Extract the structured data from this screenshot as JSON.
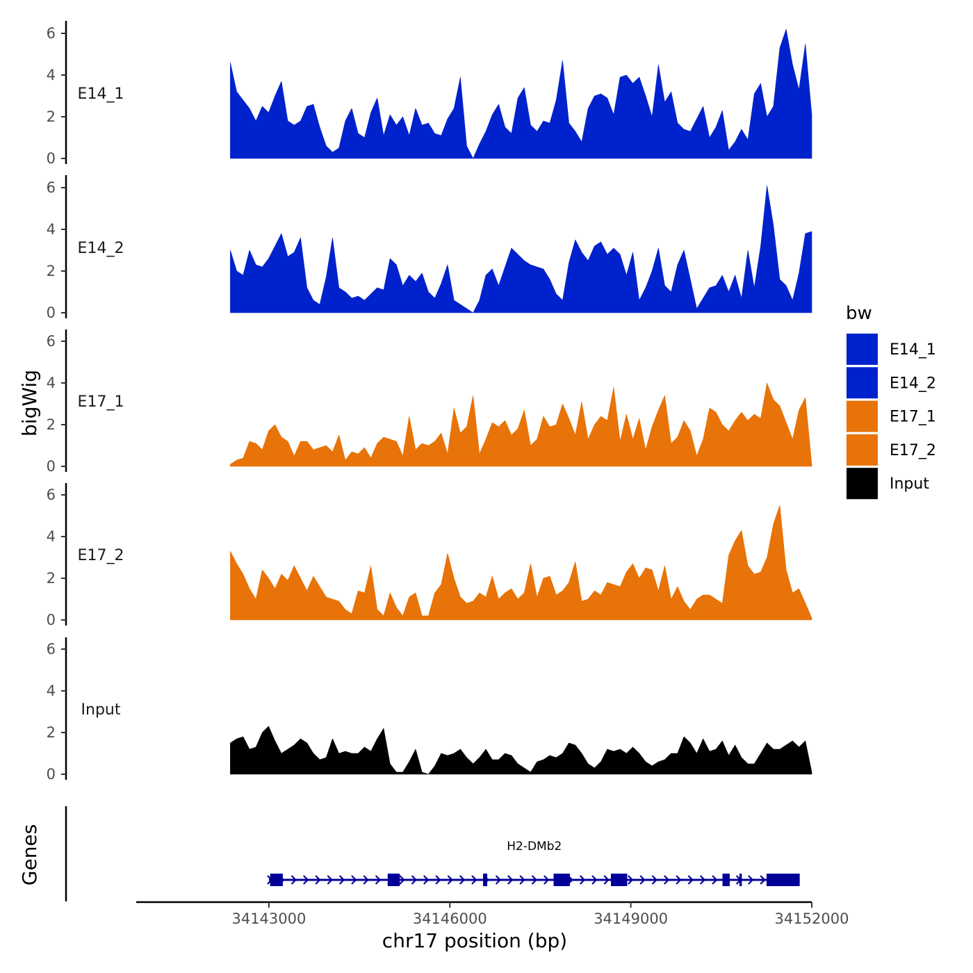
{
  "chart_data": {
    "type": "area",
    "ylabel": "bigWig",
    "xlabel": "chr17 position (bp)",
    "ylim": [
      0,
      6.5
    ],
    "yticks": [
      "0",
      "2",
      "4",
      "6"
    ],
    "xlim": [
      34140800,
      34152000
    ],
    "xticks": [
      {
        "value": 34143000,
        "label": "34143000"
      },
      {
        "value": 34146000,
        "label": "34146000"
      },
      {
        "value": 34149000,
        "label": "34149000"
      },
      {
        "value": 34152000,
        "label": "34152000"
      }
    ],
    "legend": {
      "title": "bw",
      "position": "right",
      "entries": [
        {
          "name": "E14_1",
          "color": "#0022cc"
        },
        {
          "name": "E14_2",
          "color": "#0022cc"
        },
        {
          "name": "E17_1",
          "color": "#e87308"
        },
        {
          "name": "E17_2",
          "color": "#e87308"
        },
        {
          "name": "Input",
          "color": "#000000"
        }
      ]
    },
    "series": [
      {
        "name": "E14_1",
        "color": "#0022cc",
        "x_start": 34142360,
        "x_end": 34152000,
        "values": [
          4.6,
          3.2,
          2.8,
          2.4,
          1.8,
          2.5,
          2.2,
          3.0,
          3.7,
          1.8,
          1.6,
          1.8,
          2.5,
          2.6,
          1.5,
          0.6,
          0.3,
          0.5,
          1.8,
          2.4,
          1.2,
          1.0,
          2.2,
          2.9,
          1.1,
          2.1,
          1.6,
          2.0,
          1.1,
          2.4,
          1.6,
          1.7,
          1.2,
          1.1,
          1.9,
          2.4,
          3.9,
          0.6,
          0.0,
          0.7,
          1.3,
          2.1,
          2.6,
          1.5,
          1.2,
          2.9,
          3.4,
          1.6,
          1.3,
          1.8,
          1.7,
          2.8,
          4.7,
          1.7,
          1.3,
          0.8,
          2.4,
          3.0,
          3.1,
          2.9,
          2.1,
          3.9,
          4.0,
          3.6,
          3.9,
          3.0,
          2.0,
          4.5,
          2.7,
          3.2,
          1.7,
          1.4,
          1.3,
          1.9,
          2.5,
          1.0,
          1.5,
          2.3,
          0.4,
          0.8,
          1.4,
          0.9,
          3.1,
          3.6,
          2.0,
          2.5,
          5.3,
          6.2,
          4.5,
          3.3,
          5.5,
          2.1
        ]
      },
      {
        "name": "E14_2",
        "color": "#0022cc",
        "x_start": 34142360,
        "x_end": 34152000,
        "values": [
          3.0,
          2.0,
          1.8,
          3.0,
          2.3,
          2.2,
          2.6,
          3.2,
          3.8,
          2.7,
          2.9,
          3.6,
          1.2,
          0.6,
          0.4,
          1.7,
          3.6,
          1.2,
          1.0,
          0.7,
          0.8,
          0.6,
          0.9,
          1.2,
          1.1,
          2.6,
          2.3,
          1.3,
          1.8,
          1.5,
          1.9,
          1.0,
          0.7,
          1.4,
          2.3,
          0.6,
          0.4,
          0.2,
          0.0,
          0.6,
          1.8,
          2.1,
          1.3,
          2.2,
          3.1,
          2.8,
          2.5,
          2.3,
          2.2,
          2.1,
          1.6,
          0.9,
          0.6,
          2.4,
          3.5,
          2.9,
          2.5,
          3.2,
          3.4,
          2.8,
          3.1,
          2.8,
          1.8,
          2.9,
          0.6,
          1.2,
          2.0,
          3.1,
          1.3,
          1.0,
          2.3,
          3.0,
          1.6,
          0.2,
          0.7,
          1.2,
          1.3,
          1.8,
          1.0,
          1.8,
          0.7,
          3.0,
          1.2,
          3.2,
          6.1,
          4.2,
          1.6,
          1.3,
          0.6,
          1.9,
          3.8,
          3.9
        ]
      },
      {
        "name": "E17_1",
        "color": "#e87308",
        "x_start": 34142360,
        "x_end": 34152000,
        "values": [
          0.1,
          0.3,
          0.4,
          1.2,
          1.1,
          0.8,
          1.7,
          2.0,
          1.4,
          1.2,
          0.5,
          1.2,
          1.2,
          0.8,
          0.9,
          1.0,
          0.7,
          1.5,
          0.3,
          0.7,
          0.6,
          0.9,
          0.4,
          1.1,
          1.4,
          1.3,
          1.2,
          0.5,
          2.4,
          0.8,
          1.1,
          1.0,
          1.2,
          1.6,
          0.6,
          2.8,
          1.6,
          1.9,
          3.4,
          0.6,
          1.3,
          2.1,
          1.9,
          2.2,
          1.5,
          1.8,
          2.7,
          1.0,
          1.3,
          2.4,
          1.9,
          2.0,
          3.0,
          2.3,
          1.5,
          3.1,
          1.3,
          2.0,
          2.4,
          2.2,
          3.8,
          1.2,
          2.5,
          1.3,
          2.3,
          0.8,
          1.9,
          2.7,
          3.4,
          1.1,
          1.4,
          2.2,
          1.7,
          0.5,
          1.3,
          2.8,
          2.6,
          2.0,
          1.7,
          2.2,
          2.6,
          2.2,
          2.5,
          2.3,
          4.0,
          3.2,
          2.9,
          2.1,
          1.3,
          2.7,
          3.3,
          0.1
        ]
      },
      {
        "name": "E17_2",
        "color": "#e87308",
        "x_start": 34142360,
        "x_end": 34152000,
        "values": [
          3.3,
          2.7,
          2.2,
          1.5,
          1.0,
          2.4,
          2.0,
          1.5,
          2.2,
          1.9,
          2.6,
          2.0,
          1.4,
          2.1,
          1.6,
          1.1,
          1.0,
          0.9,
          0.5,
          0.3,
          1.4,
          1.3,
          2.6,
          0.5,
          0.2,
          1.3,
          0.6,
          0.2,
          1.1,
          1.3,
          0.2,
          0.2,
          1.3,
          1.7,
          3.2,
          2.0,
          1.1,
          0.8,
          0.9,
          1.3,
          1.1,
          2.1,
          1.0,
          1.3,
          1.5,
          1.0,
          1.3,
          2.7,
          1.1,
          2.0,
          2.1,
          1.2,
          1.4,
          1.8,
          2.8,
          0.9,
          1.0,
          1.4,
          1.2,
          1.8,
          1.7,
          1.6,
          2.3,
          2.7,
          2.0,
          2.5,
          2.4,
          1.4,
          2.6,
          1.0,
          1.6,
          0.9,
          0.5,
          1.0,
          1.2,
          1.2,
          1.0,
          0.8,
          3.1,
          3.8,
          4.3,
          2.6,
          2.2,
          2.3,
          3.0,
          4.6,
          5.5,
          2.4,
          1.3,
          1.5,
          0.8,
          0.1
        ]
      },
      {
        "name": "Input",
        "color": "#000000",
        "x_start": 34142360,
        "x_end": 34152000,
        "values": [
          1.5,
          1.7,
          1.8,
          1.2,
          1.3,
          2.0,
          2.3,
          1.6,
          1.0,
          1.2,
          1.4,
          1.7,
          1.5,
          1.0,
          0.7,
          0.8,
          1.7,
          1.0,
          1.1,
          1.0,
          1.0,
          1.3,
          1.1,
          1.7,
          2.2,
          0.5,
          0.1,
          0.1,
          0.6,
          1.2,
          0.1,
          0.0,
          0.4,
          1.0,
          0.9,
          1.0,
          1.2,
          0.8,
          0.5,
          0.8,
          1.2,
          0.7,
          0.7,
          1.0,
          0.9,
          0.5,
          0.3,
          0.1,
          0.6,
          0.7,
          0.9,
          0.8,
          1.0,
          1.5,
          1.4,
          1.0,
          0.5,
          0.3,
          0.6,
          1.2,
          1.1,
          1.2,
          1.0,
          1.3,
          1.0,
          0.6,
          0.4,
          0.6,
          0.7,
          1.0,
          1.0,
          1.8,
          1.5,
          1.0,
          1.7,
          1.1,
          1.2,
          1.6,
          0.9,
          1.4,
          0.8,
          0.5,
          0.5,
          1.0,
          1.5,
          1.2,
          1.2,
          1.4,
          1.6,
          1.3,
          1.6,
          0.1
        ]
      }
    ],
    "genes_track": {
      "label": "Genes",
      "gene_name": "H2-DMb2",
      "color": "#000099",
      "start": 34143000,
      "end": 34151800,
      "strand": "+",
      "exons": [
        {
          "start": 34143020,
          "end": 34143230
        },
        {
          "start": 34144970,
          "end": 34145170
        },
        {
          "start": 34146550,
          "end": 34146620
        },
        {
          "start": 34147720,
          "end": 34147990
        },
        {
          "start": 34148670,
          "end": 34148940
        },
        {
          "start": 34150520,
          "end": 34150640
        },
        {
          "start": 34150800,
          "end": 34150840
        },
        {
          "start": 34151250,
          "end": 34151800
        }
      ]
    }
  }
}
